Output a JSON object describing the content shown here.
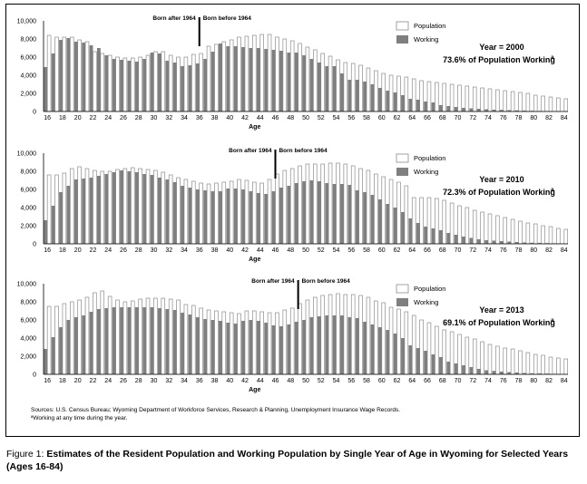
{
  "colors": {
    "population": "#ffffff",
    "working": "#7f7f7f",
    "stroke": "#8c8c8c"
  },
  "legend": {
    "population": "Population",
    "working": "Working"
  },
  "born_after_label": "Born after 1964",
  "born_before_label": "Born before 1964",
  "footnotes": {
    "sources": "Sources: U.S. Census Bureau; Wyoming Department of Workforce Services, Research & Planning, Unemployment Insurance Wage Records.",
    "note": "ªWorking at any time during the year."
  },
  "caption": {
    "label": "Figure 1:",
    "text": "Estimates of the Resident Population and Working Population by Single Year of Age in Wyoming for Selected Years (Ages 16-84)"
  },
  "chart_data": [
    {
      "type": "bar",
      "year_label": "Year = 2000",
      "percent_label": "73.6% of Population Working",
      "percent_sup": "a",
      "xlabel": "Age",
      "ylim": [
        0,
        10000
      ],
      "yticks": [
        "0",
        "2,000",
        "4,000",
        "6,000",
        "8,000",
        "10,000"
      ],
      "xticks": [
        "16",
        "18",
        "20",
        "22",
        "24",
        "26",
        "28",
        "30",
        "32",
        "34",
        "36",
        "38",
        "40",
        "42",
        "44",
        "46",
        "48",
        "50",
        "52",
        "54",
        "56",
        "58",
        "60",
        "62",
        "64",
        "66",
        "68",
        "70",
        "72",
        "74",
        "76",
        "78",
        "80",
        "82",
        "84"
      ],
      "boundary_age": 36,
      "x": [
        16,
        17,
        18,
        19,
        20,
        21,
        22,
        23,
        24,
        25,
        26,
        27,
        28,
        29,
        30,
        31,
        32,
        33,
        34,
        35,
        36,
        37,
        38,
        39,
        40,
        41,
        42,
        43,
        44,
        45,
        46,
        47,
        48,
        49,
        50,
        51,
        52,
        53,
        54,
        55,
        56,
        57,
        58,
        59,
        60,
        61,
        62,
        63,
        64,
        65,
        66,
        67,
        68,
        69,
        70,
        71,
        72,
        73,
        74,
        75,
        76,
        77,
        78,
        79,
        80,
        81,
        82,
        83,
        84
      ],
      "series": [
        {
          "name": "Population",
          "values": [
            8400,
            8200,
            8200,
            8200,
            7900,
            7700,
            6600,
            6400,
            6200,
            6000,
            5900,
            5900,
            6000,
            6200,
            6600,
            6600,
            6200,
            6000,
            6000,
            6300,
            6400,
            7200,
            7400,
            7700,
            7900,
            8200,
            8300,
            8400,
            8500,
            8500,
            8200,
            8000,
            7800,
            7500,
            7100,
            6800,
            6400,
            6100,
            5700,
            5400,
            5300,
            5100,
            4800,
            4500,
            4200,
            4000,
            3900,
            3800,
            3600,
            3400,
            3300,
            3200,
            3100,
            3000,
            2900,
            2800,
            2700,
            2600,
            2500,
            2400,
            2300,
            2200,
            2100,
            2000,
            1800,
            1700,
            1600,
            1500,
            1400
          ]
        },
        {
          "name": "Working",
          "values": [
            4900,
            6400,
            7900,
            8100,
            7700,
            7600,
            7300,
            7000,
            6200,
            5800,
            5700,
            5600,
            5500,
            5800,
            6500,
            6400,
            5600,
            5400,
            5000,
            5100,
            5300,
            5800,
            6600,
            7500,
            7200,
            7200,
            7100,
            7000,
            7000,
            6900,
            6800,
            6700,
            6500,
            6500,
            6200,
            5800,
            5400,
            5000,
            5000,
            4200,
            3500,
            3500,
            3300,
            3000,
            2600,
            2300,
            2100,
            1800,
            1400,
            1300,
            1100,
            1000,
            700,
            600,
            500,
            400,
            350,
            300,
            250,
            200,
            180,
            150,
            120,
            100,
            80,
            60,
            50,
            40,
            30
          ]
        }
      ]
    },
    {
      "type": "bar",
      "year_label": "Year = 2010",
      "percent_label": "72.3% of Population Working",
      "percent_sup": "a",
      "xlabel": "Age",
      "ylim": [
        0,
        10000
      ],
      "yticks": [
        "0",
        "2,000",
        "4,000",
        "6,000",
        "8,000",
        "10,000"
      ],
      "xticks": [
        "16",
        "18",
        "20",
        "22",
        "24",
        "26",
        "28",
        "30",
        "32",
        "34",
        "36",
        "38",
        "40",
        "42",
        "44",
        "46",
        "48",
        "50",
        "52",
        "54",
        "56",
        "58",
        "60",
        "62",
        "64",
        "66",
        "68",
        "70",
        "72",
        "74",
        "76",
        "78",
        "80",
        "82",
        "84"
      ],
      "boundary_age": 46,
      "x": [
        16,
        17,
        18,
        19,
        20,
        21,
        22,
        23,
        24,
        25,
        26,
        27,
        28,
        29,
        30,
        31,
        32,
        33,
        34,
        35,
        36,
        37,
        38,
        39,
        40,
        41,
        42,
        43,
        44,
        45,
        46,
        47,
        48,
        49,
        50,
        51,
        52,
        53,
        54,
        55,
        56,
        57,
        58,
        59,
        60,
        61,
        62,
        63,
        64,
        65,
        66,
        67,
        68,
        69,
        70,
        71,
        72,
        73,
        74,
        75,
        76,
        77,
        78,
        79,
        80,
        81,
        82,
        83,
        84
      ],
      "series": [
        {
          "name": "Population",
          "values": [
            7600,
            7600,
            7800,
            8300,
            8500,
            8300,
            8100,
            8000,
            8000,
            8200,
            8300,
            8400,
            8300,
            8200,
            8100,
            7900,
            7600,
            7300,
            7100,
            6900,
            6700,
            6600,
            6700,
            6800,
            6900,
            7100,
            7000,
            6800,
            6700,
            7100,
            7700,
            8100,
            8300,
            8600,
            8800,
            8800,
            8800,
            8900,
            8900,
            8800,
            8600,
            8300,
            8100,
            7700,
            7400,
            7100,
            6800,
            6400,
            5100,
            5100,
            5100,
            5000,
            4800,
            4500,
            4200,
            4000,
            3700,
            3500,
            3300,
            3100,
            2900,
            2700,
            2500,
            2300,
            2200,
            2000,
            1900,
            1700,
            1600
          ]
        },
        {
          "name": "Working",
          "values": [
            2600,
            4200,
            5700,
            6400,
            7100,
            7200,
            7300,
            7500,
            7700,
            7900,
            8100,
            8000,
            7900,
            7700,
            7600,
            7300,
            7100,
            6800,
            6400,
            6200,
            6000,
            5900,
            5800,
            5800,
            6100,
            6100,
            6000,
            5800,
            5600,
            5500,
            5800,
            6200,
            6400,
            6700,
            6900,
            7000,
            6900,
            6700,
            6600,
            6600,
            6500,
            5900,
            5700,
            5400,
            4900,
            4400,
            4000,
            3500,
            2800,
            2300,
            1900,
            1700,
            1500,
            1200,
            1000,
            800,
            650,
            500,
            400,
            350,
            300,
            250,
            200,
            150,
            120,
            100,
            80,
            60,
            40
          ]
        }
      ]
    },
    {
      "type": "bar",
      "year_label": "Year = 2013",
      "percent_label": "69.1% of Population Working",
      "percent_sup": "a",
      "xlabel": "Age",
      "ylim": [
        0,
        10000
      ],
      "yticks": [
        "0",
        "2,000",
        "4,000",
        "6,000",
        "8,000",
        "10,000"
      ],
      "xticks": [
        "16",
        "18",
        "20",
        "22",
        "24",
        "26",
        "28",
        "30",
        "32",
        "34",
        "36",
        "38",
        "40",
        "42",
        "44",
        "46",
        "48",
        "50",
        "52",
        "54",
        "56",
        "58",
        "60",
        "62",
        "64",
        "66",
        "68",
        "70",
        "72",
        "74",
        "76",
        "78",
        "80",
        "82",
        "84"
      ],
      "boundary_age": 49,
      "x": [
        16,
        17,
        18,
        19,
        20,
        21,
        22,
        23,
        24,
        25,
        26,
        27,
        28,
        29,
        30,
        31,
        32,
        33,
        34,
        35,
        36,
        37,
        38,
        39,
        40,
        41,
        42,
        43,
        44,
        45,
        46,
        47,
        48,
        49,
        50,
        51,
        52,
        53,
        54,
        55,
        56,
        57,
        58,
        59,
        60,
        61,
        62,
        63,
        64,
        65,
        66,
        67,
        68,
        69,
        70,
        71,
        72,
        73,
        74,
        75,
        76,
        77,
        78,
        79,
        80,
        81,
        82,
        83,
        84
      ],
      "series": [
        {
          "name": "Population",
          "values": [
            7500,
            7500,
            7800,
            8000,
            8200,
            8500,
            9000,
            9200,
            8600,
            8200,
            8000,
            8100,
            8300,
            8400,
            8400,
            8400,
            8300,
            8200,
            7700,
            7600,
            7300,
            7100,
            7000,
            6900,
            6800,
            6700,
            7000,
            7000,
            6900,
            6800,
            6800,
            7100,
            7300,
            7800,
            8200,
            8500,
            8700,
            8800,
            8900,
            8800,
            8800,
            8700,
            8500,
            8100,
            7900,
            7400,
            7200,
            6900,
            6500,
            6000,
            5700,
            5300,
            4900,
            4700,
            4400,
            4100,
            3900,
            3600,
            3300,
            3100,
            2900,
            2800,
            2600,
            2400,
            2200,
            2100,
            1900,
            1800,
            1700
          ]
        },
        {
          "name": "Working",
          "values": [
            2800,
            4100,
            5200,
            6000,
            6300,
            6500,
            6900,
            7200,
            7300,
            7400,
            7400,
            7400,
            7400,
            7400,
            7400,
            7300,
            7200,
            7100,
            6800,
            6600,
            6300,
            6100,
            6000,
            5900,
            5700,
            5600,
            5900,
            6000,
            5900,
            5700,
            5400,
            5300,
            5500,
            5800,
            6000,
            6300,
            6400,
            6500,
            6500,
            6500,
            6300,
            6200,
            5800,
            5500,
            5200,
            4900,
            4500,
            4000,
            3200,
            2900,
            2600,
            2200,
            1900,
            1400,
            1200,
            1000,
            800,
            600,
            450,
            380,
            300,
            250,
            200,
            150,
            120,
            100,
            80,
            60,
            40
          ]
        }
      ]
    }
  ]
}
